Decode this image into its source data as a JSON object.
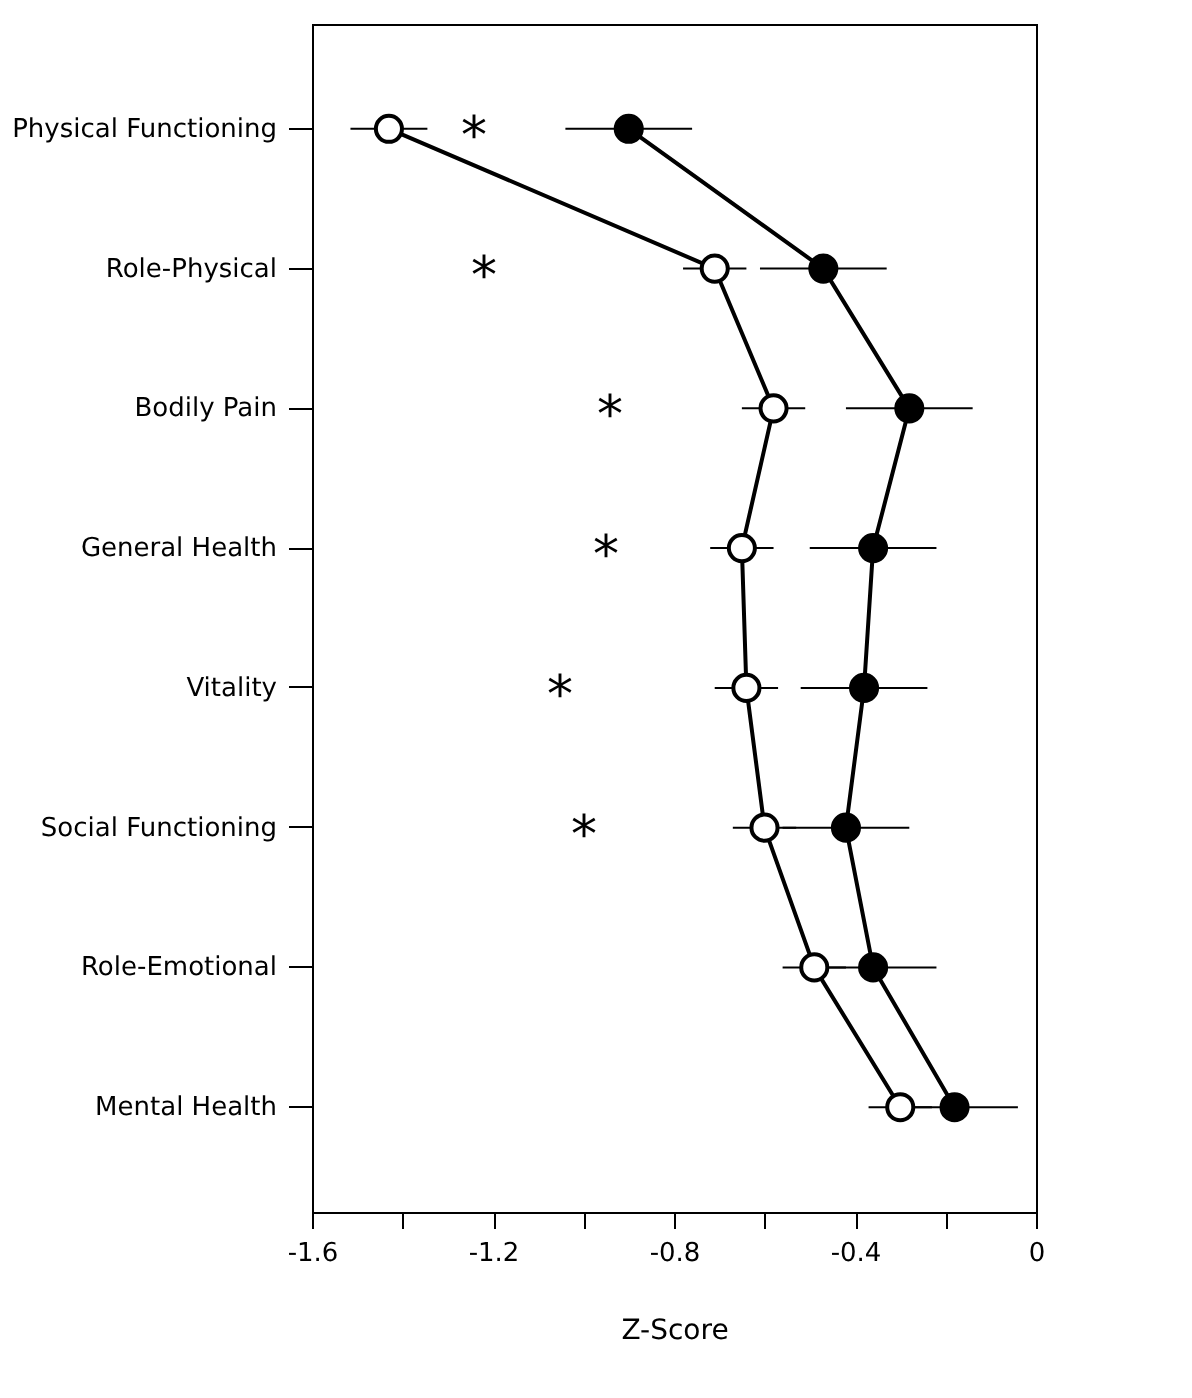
{
  "chart_data": {
    "type": "line",
    "orientation": "horizontal",
    "xlabel": "Z-Score",
    "categories": [
      "Physical Functioning",
      "Role-Physical",
      "Bodily Pain",
      "General Health",
      "Vitality",
      "Social Functioning",
      "Role-Emotional",
      "Mental Health"
    ],
    "series": [
      {
        "color": "#000000",
        "values": [
          -0.9,
          -0.47,
          -0.28,
          -0.36,
          -0.38,
          -0.42,
          -0.36,
          -0.18
        ],
        "errors": [
          0.14,
          0.14,
          0.14,
          0.14,
          0.14,
          0.14,
          0.14,
          0.14
        ]
      },
      {
        "color": "#ffffff",
        "values": [
          -1.43,
          -0.71,
          -0.58,
          -0.65,
          -0.64,
          -0.6,
          -0.49,
          -0.3
        ],
        "errors": [
          0.085,
          0.07,
          0.07,
          0.07,
          0.07,
          0.07,
          0.07,
          0.07
        ]
      }
    ],
    "xlim": [
      -1.6,
      0
    ],
    "xticks": [
      -1.6,
      {
        "value": -1.4,
        "label": null
      },
      -1.2,
      {
        "value": -1.0,
        "label": null
      },
      -0.8,
      {
        "value": -0.6,
        "label": null
      },
      -0.4,
      {
        "value": -0.2,
        "label": null
      },
      0
    ],
    "annotations": [
      "*",
      "*",
      "*",
      "*",
      "*",
      "*"
    ],
    "marker": "circle",
    "grid": false
  }
}
